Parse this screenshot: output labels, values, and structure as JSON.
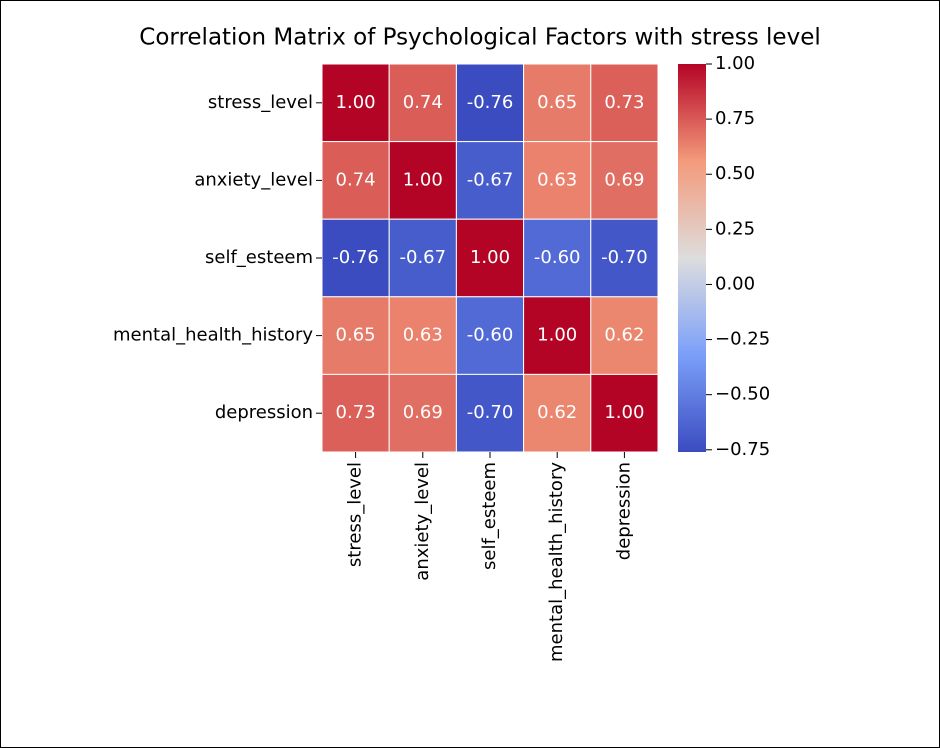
{
  "chart_data": {
    "type": "heatmap",
    "title": "Correlation Matrix of Psychological Factors with stress level",
    "categories": [
      "stress_level",
      "anxiety_level",
      "self_esteem",
      "mental_health_history",
      "depression"
    ],
    "values": [
      [
        1,
        0.74,
        -0.76,
        0.65,
        0.73
      ],
      [
        0.74,
        1,
        -0.67,
        0.63,
        0.69
      ],
      [
        -0.76,
        -0.67,
        1,
        -0.6,
        -0.7
      ],
      [
        0.65,
        0.63,
        -0.6,
        1,
        0.62
      ],
      [
        0.73,
        0.69,
        -0.7,
        0.62,
        1
      ]
    ],
    "value_labels": [
      [
        "1.00",
        "0.74",
        "-0.76",
        "0.65",
        "0.73"
      ],
      [
        "0.74",
        "1.00",
        "-0.67",
        "0.63",
        "0.69"
      ],
      [
        "-0.76",
        "-0.67",
        "1.00",
        "-0.60",
        "-0.70"
      ],
      [
        "0.65",
        "0.63",
        "-0.60",
        "1.00",
        "0.62"
      ],
      [
        "0.73",
        "0.69",
        "-0.70",
        "0.62",
        "1.00"
      ]
    ],
    "colormap": "coolwarm",
    "clim": [
      -0.76,
      1
    ],
    "cticks": [
      {
        "value": 1,
        "label": "1.00"
      },
      {
        "value": 0.75,
        "label": "0.75"
      },
      {
        "value": 0.5,
        "label": "0.50"
      },
      {
        "value": 0.25,
        "label": "0.25"
      },
      {
        "value": 0,
        "label": "0.00"
      },
      {
        "value": -0.25,
        "label": "−0.25"
      },
      {
        "value": -0.5,
        "label": "−0.50"
      },
      {
        "value": -0.75,
        "label": "−0.75"
      }
    ]
  }
}
